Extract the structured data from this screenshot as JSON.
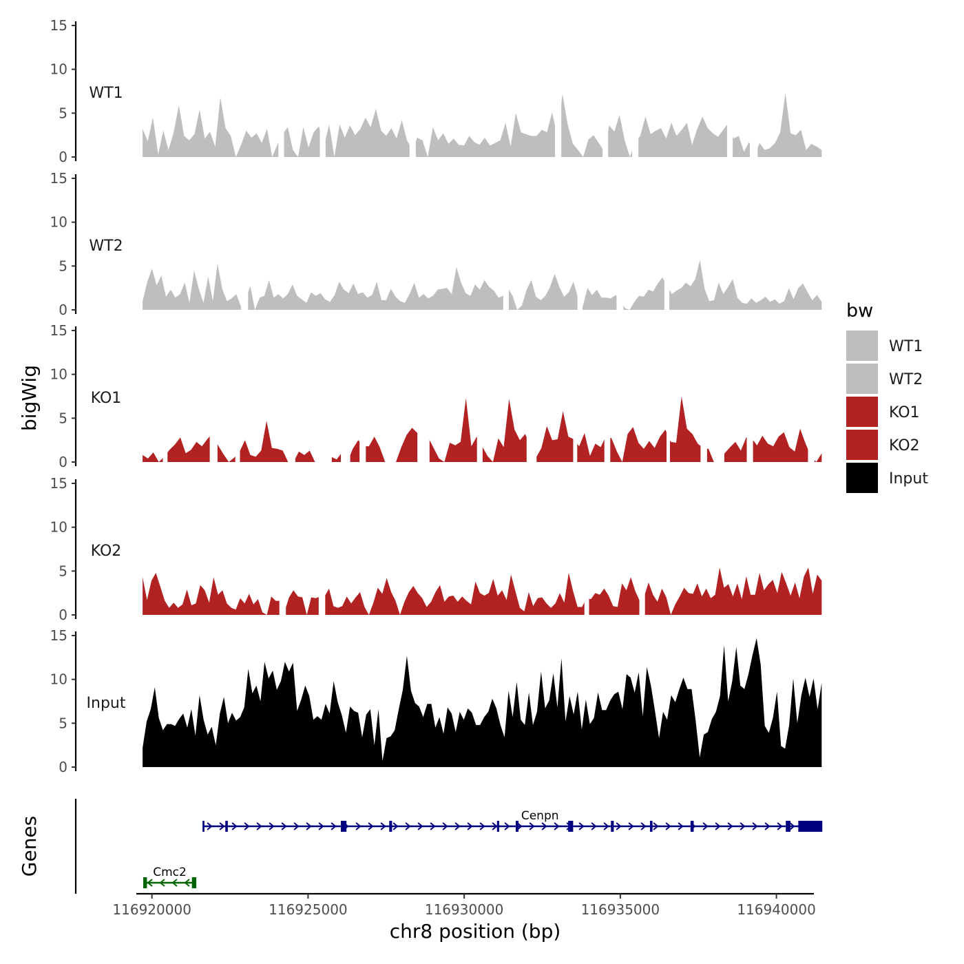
{
  "chart_data": {
    "type": "area",
    "title": "",
    "xlabel": "chr8 position (bp)",
    "ylabel_signal": "bigWig",
    "ylabel_genes": "Genes",
    "xlim": [
      116919500,
      116941200
    ],
    "ylim": [
      0,
      15
    ],
    "y_ticks": [
      "0",
      "5",
      "10",
      "15"
    ],
    "x_ticks": [
      {
        "value": 116920000,
        "label": "116920000"
      },
      {
        "value": 116925000,
        "label": "116925000"
      },
      {
        "value": 116930000,
        "label": "116930000"
      },
      {
        "value": 116935000,
        "label": "116935000"
      },
      {
        "value": 116940000,
        "label": "116940000"
      }
    ],
    "signal_range": [
      116919700,
      116941450
    ],
    "legend": {
      "title": "bw",
      "entries": [
        {
          "name": "WT1",
          "color": "#bebebe"
        },
        {
          "name": "WT2",
          "color": "#bebebe"
        },
        {
          "name": "KO1",
          "color": "#b22222"
        },
        {
          "name": "KO2",
          "color": "#b22222"
        },
        {
          "name": "Input",
          "color": "#000000"
        }
      ]
    },
    "series": [
      {
        "name": "WT1",
        "color": "#bebebe",
        "values": [
          3.2,
          1.8,
          4.5,
          0.3,
          3.0,
          0.8,
          2.8,
          5.9,
          2.4,
          1.9,
          2.6,
          5.4,
          2.1,
          2.9,
          1.2,
          6.8,
          3.3,
          2.4,
          0.0,
          1.4,
          3.0,
          2.2,
          2.7,
          1.6,
          3.2,
          0.0,
          1.4,
          2.6,
          3.4,
          0.8,
          0.0,
          3.4,
          1.1,
          2.8,
          3.5,
          1.3,
          3.7,
          0.0,
          3.7,
          2.2,
          3.6,
          2.5,
          3.2,
          4.5,
          3.4,
          5.5,
          3.0,
          2.4,
          3.3,
          2.1,
          4.2,
          1.9,
          0.9,
          2.2,
          1.9,
          0.0,
          3.4,
          1.9,
          2.7,
          1.5,
          2.1,
          1.4,
          1.3,
          2.4,
          1.7,
          1.4,
          2.2,
          1.3,
          1.6,
          1.9,
          3.9,
          1.2,
          5.0,
          2.8,
          2.6,
          2.4,
          2.4,
          3.1,
          2.8,
          5.1,
          2.4,
          7.2,
          3.7,
          1.5,
          0.8,
          0.0,
          2.0,
          2.5,
          1.6,
          0.7,
          3.6,
          2.9,
          4.8,
          1.9,
          0.0,
          1.7,
          2.4,
          4.6,
          2.6,
          3.0,
          3.3,
          2.1,
          3.9,
          2.4,
          3.1,
          3.9,
          1.4,
          3.2,
          4.6,
          3.3,
          2.7,
          2.3,
          3.1,
          3.9,
          2.1,
          2.4,
          0.6,
          1.7,
          0.0,
          1.6,
          0.8,
          1.0,
          1.6,
          2.8,
          7.3,
          2.7,
          2.5,
          3.1,
          0.8,
          1.5,
          1.2,
          0.8
        ]
      },
      {
        "name": "WT2",
        "color": "#bebebe",
        "values": [
          1.0,
          3.2,
          4.7,
          2.8,
          3.9,
          1.5,
          2.3,
          1.4,
          1.8,
          3.1,
          0.8,
          4.5,
          2.4,
          0.8,
          3.8,
          1.0,
          5.3,
          2.4,
          1.0,
          1.3,
          1.8,
          0.4,
          1.2,
          2.7,
          0.0,
          1.4,
          1.6,
          3.4,
          1.4,
          1.8,
          1.3,
          1.8,
          2.9,
          1.6,
          1.2,
          0.8,
          2.0,
          1.6,
          1.9,
          1.2,
          0.9,
          1.7,
          3.2,
          2.3,
          1.9,
          3.0,
          1.8,
          2.0,
          1.4,
          1.7,
          3.2,
          1.1,
          1.1,
          2.4,
          1.5,
          1.0,
          0.8,
          1.8,
          3.1,
          1.4,
          1.8,
          1.3,
          1.6,
          2.3,
          2.4,
          2.5,
          1.8,
          4.9,
          3.1,
          1.9,
          1.6,
          2.9,
          2.3,
          3.4,
          2.6,
          2.2,
          1.4,
          1.6,
          2.5,
          1.6,
          0.0,
          0.5,
          2.3,
          3.4,
          1.5,
          1.1,
          1.6,
          2.6,
          4.1,
          2.6,
          1.5,
          2.0,
          3.2,
          1.3,
          0.4,
          2.5,
          1.7,
          2.3,
          1.4,
          1.4,
          1.3,
          1.7,
          1.1,
          0.2,
          0.0,
          0.9,
          1.6,
          1.5,
          2.3,
          2.1,
          3.0,
          3.7,
          2.7,
          1.8,
          2.2,
          2.5,
          3.1,
          2.7,
          3.5,
          5.7,
          2.4,
          1.0,
          1.1,
          3.1,
          1.8,
          2.6,
          3.5,
          1.4,
          0.8,
          0.7,
          1.3,
          0.8,
          1.1,
          1.5,
          0.9,
          1.2,
          0.7,
          1.0,
          2.5,
          1.2,
          2.5,
          3.0,
          2.0,
          1.1,
          1.7,
          0.9
        ]
      },
      {
        "name": "KO1",
        "color": "#b22222",
        "values": [
          0.8,
          0.4,
          1.1,
          0.0,
          0.6,
          1.4,
          2.0,
          2.8,
          1.0,
          1.4,
          2.3,
          1.8,
          2.6,
          3.3,
          1.9,
          0.9,
          0.0,
          0.5,
          1.2,
          2.5,
          0.8,
          0.6,
          1.3,
          4.7,
          1.6,
          1.5,
          1.3,
          0.0,
          0.0,
          1.2,
          0.8,
          1.3,
          0.0,
          0.6,
          0.7,
          0.6,
          0.3,
          1.1,
          0.0,
          1.5,
          2.5,
          1.8,
          1.8,
          2.9,
          1.7,
          0.0,
          0.0,
          0.0,
          1.7,
          3.1,
          3.9,
          3.3,
          3.8,
          2.8,
          1.6,
          0.4,
          0.0,
          2.2,
          1.9,
          2.3,
          7.3,
          1.8,
          2.9,
          1.8,
          0.7,
          0.0,
          2.7,
          1.7,
          7.2,
          3.7,
          2.5,
          3.2,
          1.7,
          0.5,
          1.6,
          4.1,
          2.5,
          2.6,
          5.8,
          2.9,
          2.6,
          1.8,
          3.3,
          0.7,
          2.1,
          1.7,
          3.0,
          2.7,
          1.2,
          0.0,
          3.2,
          4.0,
          2.2,
          1.5,
          2.4,
          1.6,
          2.9,
          3.7,
          2.3,
          2.2,
          7.5,
          3.8,
          3.2,
          2.1,
          1.6,
          1.5,
          0.0,
          0.0,
          1.0,
          1.7,
          2.3,
          1.3,
          2.8,
          2.7,
          1.9,
          3.0,
          2.1,
          1.8,
          2.9,
          3.4,
          1.7,
          1.2,
          3.8,
          2.1,
          0.7,
          0.0,
          1.0
        ]
      },
      {
        "name": "KO2",
        "color": "#b22222",
        "values": [
          4.3,
          1.7,
          3.9,
          4.8,
          3.2,
          1.6,
          0.8,
          1.4,
          0.8,
          1.2,
          2.9,
          1.1,
          1.3,
          3.4,
          2.8,
          1.4,
          4.3,
          2.3,
          2.8,
          1.3,
          0.8,
          0.6,
          1.9,
          1.3,
          2.4,
          1.2,
          1.8,
          0.3,
          0.0,
          2.1,
          1.6,
          1.6,
          0.4,
          2.0,
          2.8,
          2.1,
          2.0,
          0.0,
          2.0,
          1.9,
          2.1,
          2.1,
          3.0,
          1.0,
          0.8,
          1.0,
          2.1,
          1.3,
          2.0,
          2.6,
          0.9,
          0.0,
          1.4,
          3.1,
          2.4,
          4.2,
          2.6,
          1.6,
          0.0,
          1.5,
          2.6,
          3.3,
          2.5,
          1.9,
          0.9,
          1.5,
          2.6,
          3.4,
          1.5,
          2.1,
          2.2,
          1.5,
          2.1,
          1.6,
          1.2,
          3.8,
          2.5,
          2.2,
          2.5,
          4.1,
          2.2,
          2.8,
          1.7,
          4.6,
          2.7,
          0.8,
          0.4,
          2.6,
          1.0,
          1.9,
          2.0,
          1.3,
          0.8,
          1.3,
          2.5,
          1.4,
          4.8,
          2.7,
          0.9,
          0.9,
          1.9,
          1.8,
          2.5,
          2.3,
          3.0,
          2.2,
          1.0,
          0.9,
          3.6,
          2.8,
          4.3,
          2.7,
          1.6,
          2.1,
          3.7,
          2.3,
          1.5,
          3.0,
          2.0,
          0.0,
          1.2,
          2.1,
          3.1,
          2.5,
          2.4,
          3.6,
          2.1,
          3.0,
          1.9,
          2.3,
          5.4,
          3.1,
          3.5,
          2.1,
          3.6,
          1.8,
          4.4,
          2.3,
          2.3,
          4.8,
          2.8,
          3.5,
          4.0,
          2.5,
          4.9,
          3.6,
          2.2,
          3.7,
          1.9,
          4.4,
          5.4,
          2.4,
          4.6,
          3.9
        ]
      },
      {
        "name": "Input",
        "color": "#000000",
        "values": [
          2.2,
          5.2,
          6.6,
          9.1,
          5.6,
          4.2,
          4.9,
          4.9,
          4.7,
          5.5,
          6.1,
          4.5,
          6.6,
          3.6,
          8.2,
          5.4,
          3.7,
          4.6,
          2.5,
          6.1,
          8.0,
          5.0,
          6.2,
          5.3,
          5.7,
          6.8,
          11.2,
          8.4,
          9.3,
          7.5,
          12.0,
          10.1,
          11.0,
          8.8,
          9.8,
          12.0,
          10.9,
          11.9,
          6.4,
          7.7,
          9.3,
          8.1,
          5.4,
          5.8,
          5.4,
          7.2,
          6.1,
          9.8,
          7.4,
          5.9,
          3.9,
          6.9,
          6.4,
          6.2,
          3.4,
          6.0,
          6.6,
          2.5,
          6.6,
          0.7,
          3.3,
          3.5,
          4.2,
          6.6,
          8.8,
          12.7,
          8.7,
          7.3,
          6.9,
          5.7,
          7.2,
          7.2,
          4.5,
          5.7,
          3.8,
          6.8,
          6.1,
          4.0,
          6.3,
          5.4,
          6.7,
          6.2,
          4.8,
          4.8,
          5.7,
          6.3,
          7.8,
          6.7,
          4.8,
          3.4,
          8.7,
          5.7,
          9.7,
          5.4,
          4.8,
          8.5,
          4.8,
          6.3,
          10.9,
          6.7,
          7.6,
          10.7,
          6.8,
          12.4,
          5.2,
          8.1,
          6.0,
          8.6,
          4.3,
          7.7,
          4.9,
          5.6,
          8.5,
          6.5,
          6.5,
          7.6,
          8.3,
          8.6,
          6.6,
          10.6,
          10.2,
          8.5,
          10.8,
          5.8,
          11.4,
          9.3,
          6.4,
          3.3,
          6.3,
          5.4,
          8.2,
          7.4,
          8.9,
          10.2,
          8.9,
          8.9,
          5.3,
          1.1,
          3.7,
          4.0,
          5.5,
          6.3,
          8.1,
          13.9,
          7.5,
          9.8,
          13.7,
          9.3,
          8.9,
          10.6,
          12.8,
          14.7,
          11.7,
          4.7,
          3.9,
          5.6,
          8.6,
          2.4,
          2.1,
          4.8,
          10.1,
          5.0,
          8.2,
          10.2,
          8.0,
          10.1,
          6.6,
          9.6
        ]
      }
    ],
    "gaps": {
      "WT1": [
        [
          116924050,
          116924230
        ],
        [
          116925380,
          116925560
        ],
        [
          116928250,
          116928450
        ],
        [
          116932910,
          116933110
        ],
        [
          116934430,
          116934610
        ],
        [
          116935380,
          116935580
        ],
        [
          116938420,
          116938600
        ],
        [
          116939150,
          116939400
        ]
      ],
      "WT2": [
        [
          116922850,
          116923080
        ],
        [
          116931250,
          116931430
        ],
        [
          116933630,
          116933790
        ],
        [
          116934880,
          116935100
        ],
        [
          116936410,
          116936570
        ]
      ],
      "KO1": [
        [
          116920350,
          116920500
        ],
        [
          116921850,
          116922100
        ],
        [
          116922670,
          116922820
        ],
        [
          116924430,
          116924590
        ],
        [
          116925240,
          116925760
        ],
        [
          116926050,
          116926350
        ],
        [
          116926650,
          116926850
        ],
        [
          116928500,
          116928890
        ],
        [
          116930410,
          116930590
        ],
        [
          116932000,
          116932320
        ],
        [
          116933490,
          116933620
        ],
        [
          116934490,
          116934680
        ],
        [
          116936480,
          116936590
        ],
        [
          116937570,
          116937780
        ],
        [
          116938050,
          116938330
        ],
        [
          116939050,
          116939250
        ],
        [
          116941010,
          116941220
        ]
      ],
      "KO2": [
        [
          116924080,
          116924290
        ],
        [
          116925340,
          116925550
        ],
        [
          116933850,
          116934000
        ],
        [
          116935610,
          116935790
        ]
      ],
      "Input": []
    },
    "genes": [
      {
        "name": "Cenpn",
        "strand": "+",
        "start": 116921620,
        "end": 116941470,
        "exons": [
          [
            116921620,
            116921680
          ],
          [
            116922350,
            116922430
          ],
          [
            116926050,
            116926230
          ],
          [
            116927600,
            116927690
          ],
          [
            116931050,
            116931120
          ],
          [
            116931650,
            116931740
          ],
          [
            116933330,
            116933490
          ],
          [
            116934700,
            116934790
          ],
          [
            116935950,
            116936030
          ],
          [
            116937250,
            116937350
          ],
          [
            116940300,
            116940450
          ],
          [
            116940700,
            116941470
          ]
        ]
      },
      {
        "name": "Cmc2",
        "strand": "-",
        "start": 116919720,
        "end": 116921420,
        "exons": [
          [
            116919720,
            116919840
          ],
          [
            116921280,
            116921420
          ]
        ]
      }
    ]
  }
}
